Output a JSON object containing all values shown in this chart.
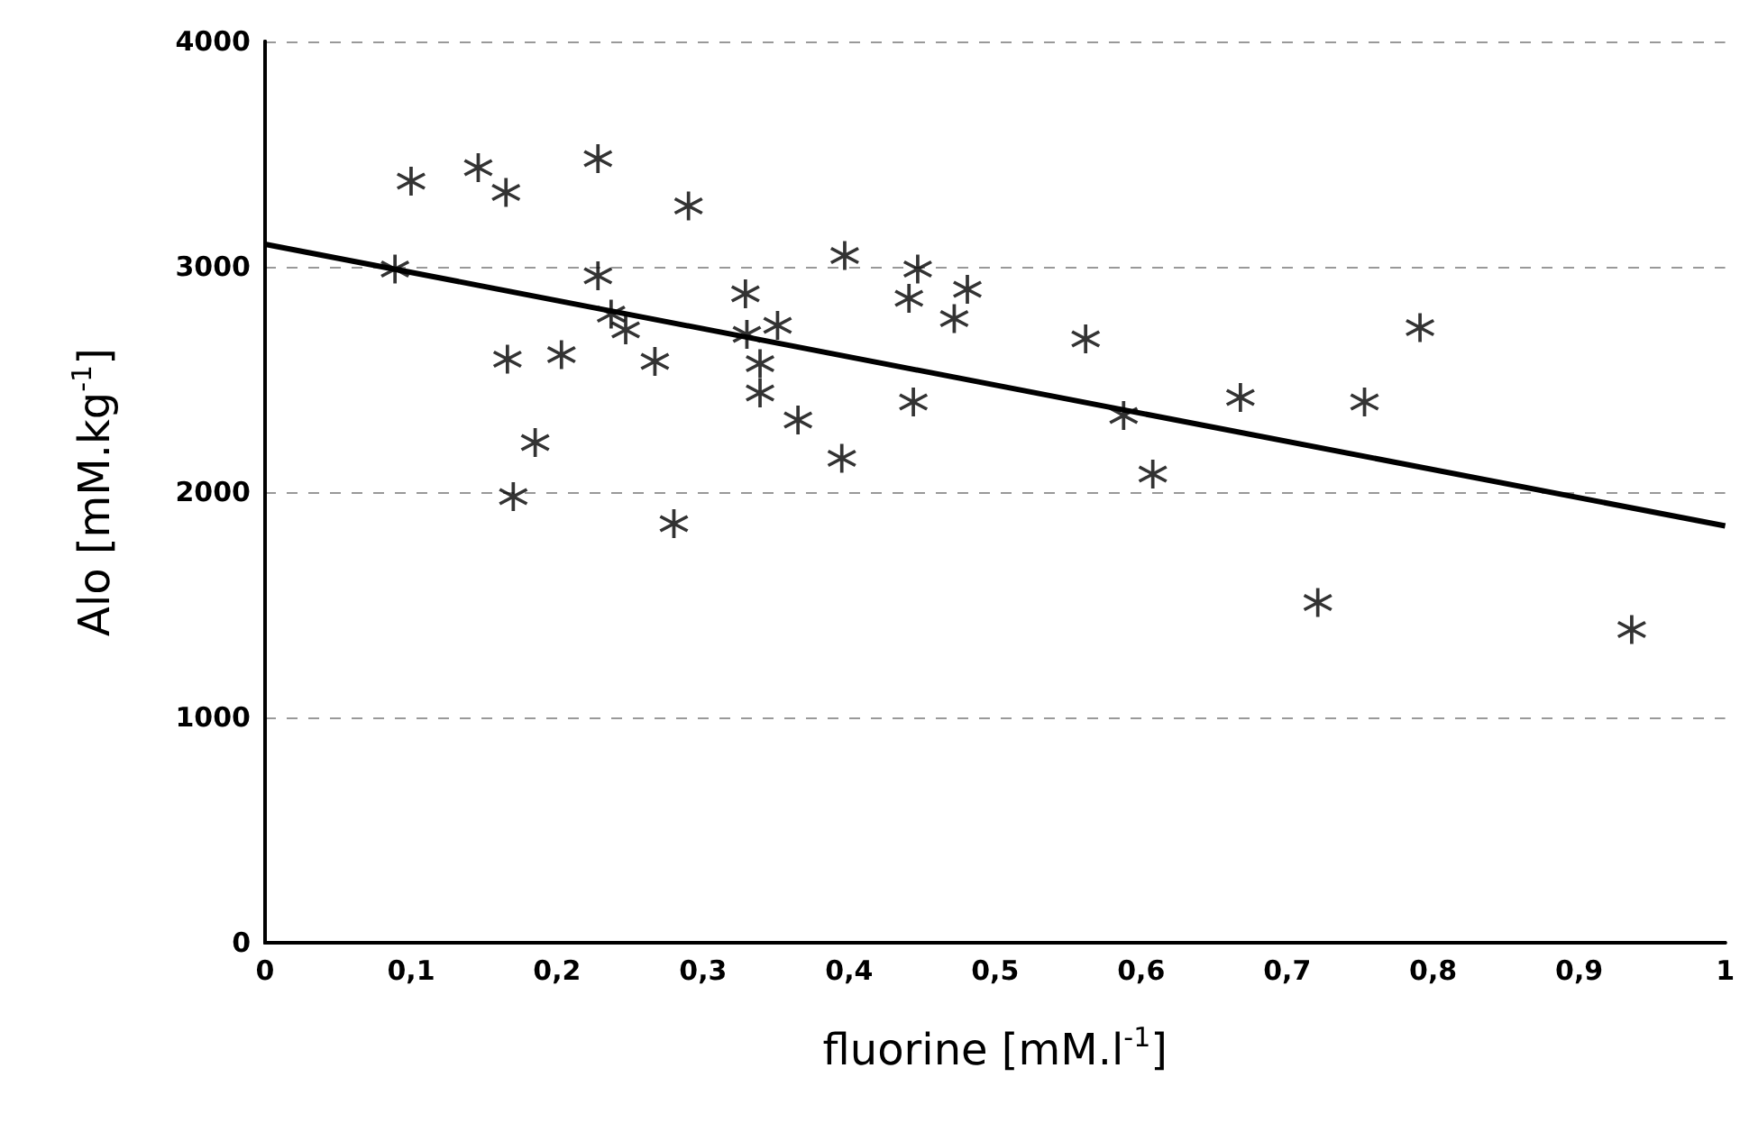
{
  "chart_data": {
    "type": "scatter",
    "xlabel": "fluorine [mM.l$^{-1}$]",
    "ylabel": "Alo [mM.kg$^{-1}$]",
    "xlim": [
      0,
      1
    ],
    "ylim": [
      0,
      4000
    ],
    "xticks": [
      0,
      {
        "value": 0.1,
        "label": "0,1"
      },
      {
        "value": 0.2,
        "label": "0,2"
      },
      {
        "value": 0.3,
        "label": "0,3"
      },
      {
        "value": 0.4,
        "label": "0,4"
      },
      {
        "value": 0.5,
        "label": "0,5"
      },
      {
        "value": 0.6,
        "label": "0,6"
      },
      {
        "value": 0.7,
        "label": "0,7"
      },
      {
        "value": 0.8,
        "label": "0,8"
      },
      {
        "value": 0.9,
        "label": "0,9"
      },
      1
    ],
    "yticks": [
      0,
      1000,
      2000,
      3000,
      4000
    ],
    "grid": "y",
    "marker": "star",
    "series": [
      {
        "color": "#000000",
        "x": [
          0.1,
          0.146,
          0.165,
          0.228,
          0.29,
          0.089,
          0.228,
          0.237,
          0.247,
          0.166,
          0.203,
          0.267,
          0.185,
          0.17,
          0.28,
          0.329,
          0.33,
          0.351,
          0.339,
          0.339,
          0.365,
          0.395,
          0.397,
          0.441,
          0.447,
          0.444,
          0.472,
          0.481,
          0.562,
          0.588,
          0.608,
          0.668,
          0.753,
          0.791,
          0.721,
          0.936
        ],
        "values": [
          3380,
          3440,
          3330,
          3480,
          3270,
          2990,
          2960,
          2790,
          2720,
          2590,
          2610,
          2580,
          2220,
          1980,
          1860,
          2880,
          2700,
          2740,
          2570,
          2440,
          2320,
          2150,
          3050,
          2860,
          2990,
          2400,
          2770,
          2900,
          2680,
          2340,
          2080,
          2420,
          2400,
          2730,
          1510,
          1390
        ]
      },
      {
        "type": "line",
        "color": "#000000",
        "marker": "none",
        "line_style": "solid",
        "x": [
          0,
          1
        ],
        "values": [
          3100,
          1850
        ]
      }
    ]
  }
}
